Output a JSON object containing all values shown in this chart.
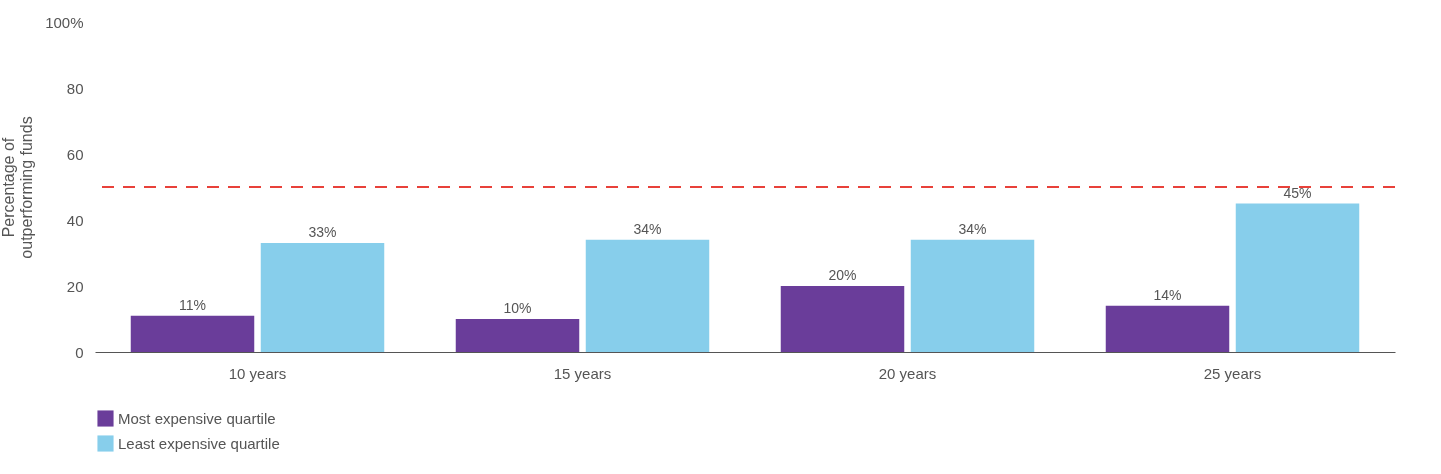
{
  "chart_data": {
    "type": "bar",
    "ylabel": "Percentage of outperforming funds",
    "categories": [
      "10 years",
      "15 years",
      "20 years",
      "25 years"
    ],
    "series": [
      {
        "name": "Most expensive quartile",
        "color": "#6a3d9a",
        "values": [
          11,
          10,
          20,
          14
        ]
      },
      {
        "name": "Least expensive quartile",
        "color": "#87ceeb",
        "values": [
          33,
          34,
          34,
          45
        ]
      }
    ],
    "value_labels": [
      [
        "11%",
        "10%",
        "20%",
        "14%"
      ],
      [
        "33%",
        "34%",
        "34%",
        "45%"
      ]
    ],
    "ylim": [
      0,
      100
    ],
    "yticks": [
      0,
      20,
      40,
      60,
      {
        "value": 100,
        "label": "100%"
      },
      80
    ],
    "ref_lines": [
      {
        "axis": "y",
        "value": 50,
        "color": "#e8413a",
        "line_style": "dashed"
      }
    ],
    "grid": false,
    "legend": "bottom left"
  }
}
